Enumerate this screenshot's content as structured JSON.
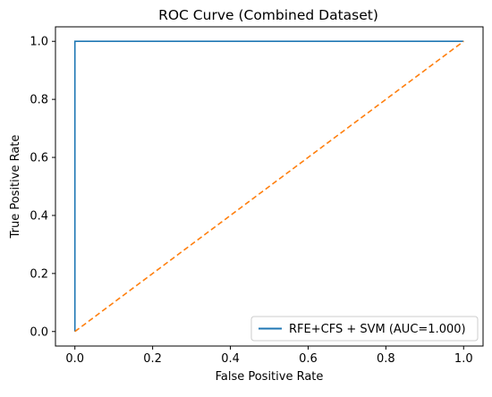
{
  "chart_data": {
    "type": "line",
    "title": "ROC Curve (Combined Dataset)",
    "xlabel": "False Positive Rate",
    "ylabel": "True Positive Rate",
    "xlim": [
      -0.05,
      1.05
    ],
    "ylim": [
      -0.05,
      1.05
    ],
    "xticks": [
      0.0,
      0.2,
      0.4,
      0.6,
      0.8,
      1.0
    ],
    "yticks": [
      0.0,
      0.2,
      0.4,
      0.6,
      0.8,
      1.0
    ],
    "xtick_labels": [
      "0.0",
      "0.2",
      "0.4",
      "0.6",
      "0.8",
      "1.0"
    ],
    "ytick_labels": [
      "0.0",
      "0.2",
      "0.4",
      "0.6",
      "0.8",
      "1.0"
    ],
    "grid": false,
    "legend_position": "lower-right",
    "series": [
      {
        "name": "RFE+CFS + SVM (AUC=1.000)",
        "style": "solid",
        "color": "#1f77b4",
        "x": [
          0.0,
          0.0,
          1.0
        ],
        "y": [
          0.0,
          1.0,
          1.0
        ]
      },
      {
        "style": "dashed",
        "color": "#ff7f0e",
        "x": [
          0.0,
          1.0
        ],
        "y": [
          0.0,
          1.0
        ]
      }
    ]
  }
}
